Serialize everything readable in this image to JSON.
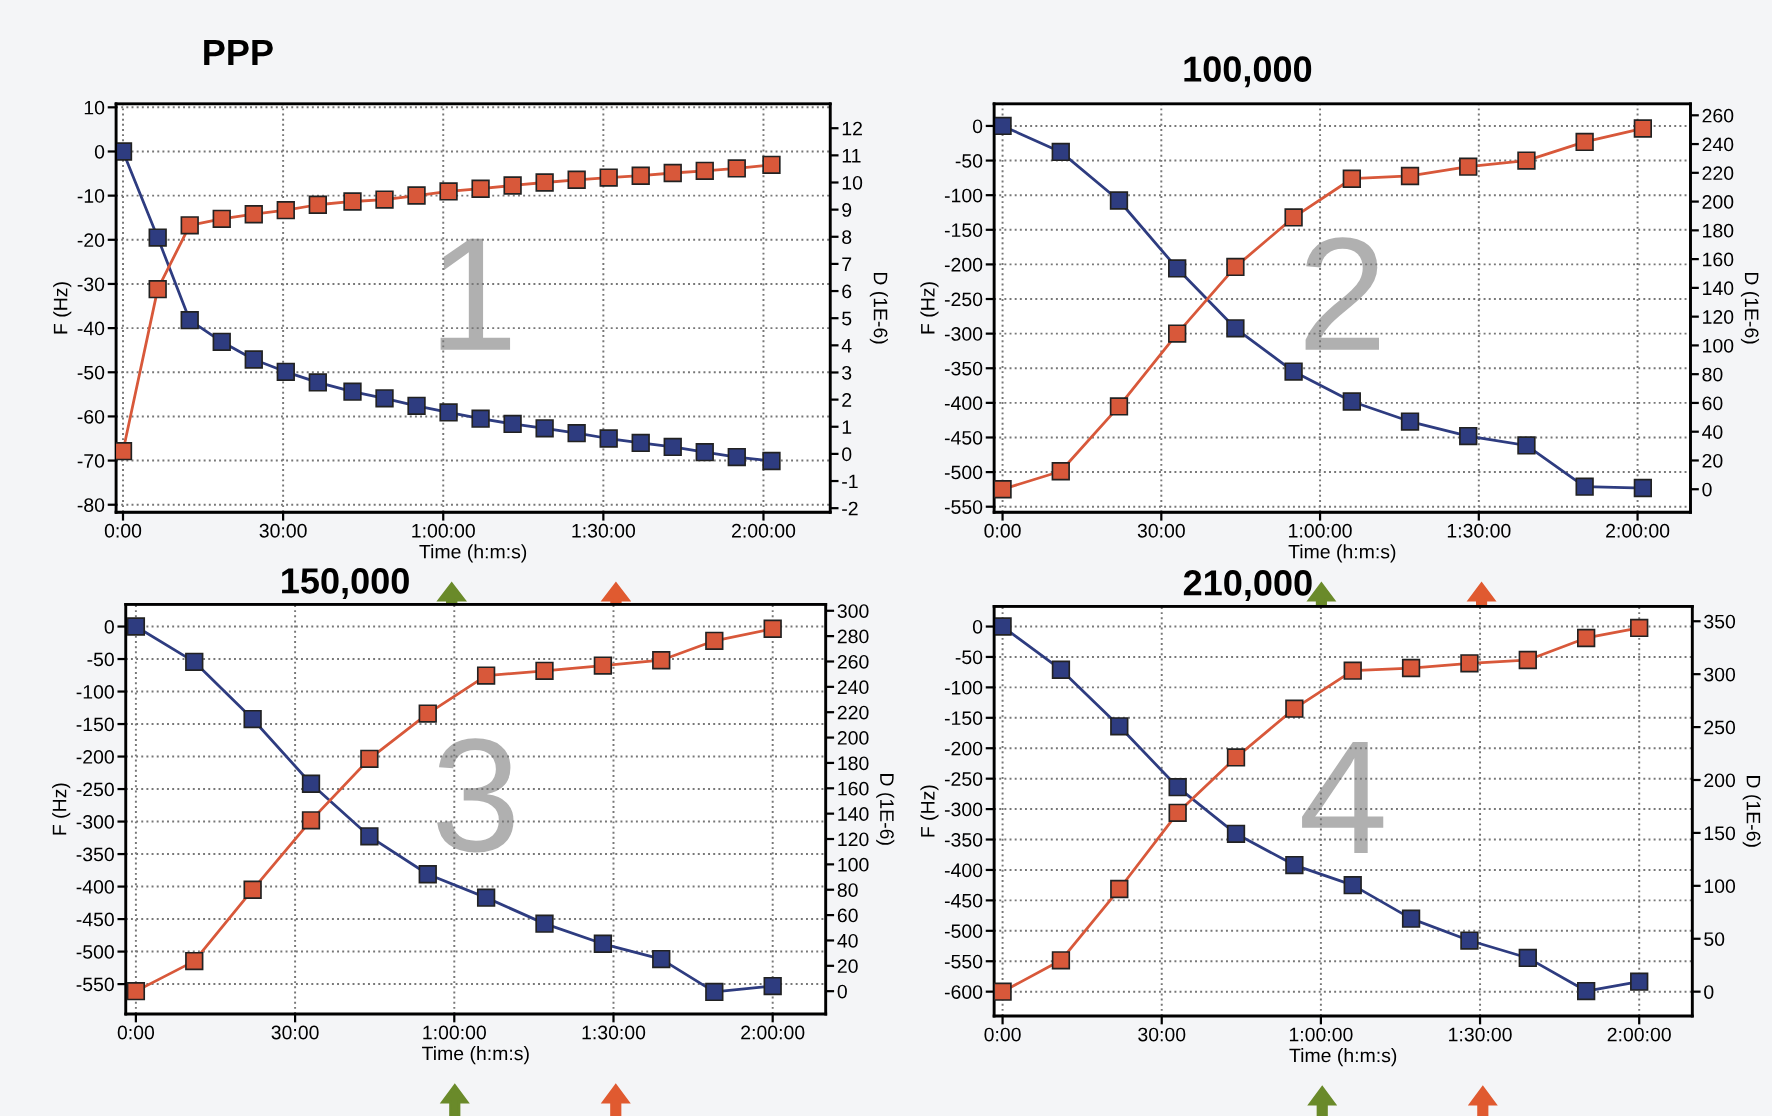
{
  "chart_data": [
    {
      "type": "line",
      "title": "PPP",
      "xlabel": "Time (h:m:s)",
      "ylabel": "F (Hz)",
      "y2label": "D (1E-6)",
      "annotations": [
        "1"
      ],
      "marker": "square",
      "grid": true,
      "x": [
        0,
        6.5,
        12.5,
        18.5,
        24.5,
        30.5,
        36.5,
        43,
        49,
        55,
        61,
        67,
        73,
        79,
        85,
        91,
        97,
        103,
        109,
        115,
        121.5
      ],
      "xlim": [
        -1.3,
        132.5
      ],
      "xticks": [
        {
          "value": 0,
          "label": "0:00"
        },
        {
          "value": 30,
          "label": "30:00"
        },
        {
          "value": 60,
          "label": "1:00:00"
        },
        {
          "value": 90,
          "label": "1:30:00"
        },
        {
          "value": 120,
          "label": "2:00:00"
        }
      ],
      "ylim": [
        -81.7,
        10.8
      ],
      "yticks": [
        -80,
        -70,
        -60,
        -50,
        -40,
        -30,
        -20,
        -10,
        0,
        10
      ],
      "y2lim": [
        -2.15,
        12.9
      ],
      "y2ticks": [
        -2,
        -1,
        0,
        1,
        2,
        3,
        4,
        5,
        6,
        7,
        8,
        9,
        10,
        11,
        12
      ],
      "series": [
        {
          "color": "#2e3c80",
          "values": [
            0,
            -19.5,
            -38.2,
            -43.1,
            -47.1,
            -49.9,
            -52.3,
            -54.4,
            -55.9,
            -57.6,
            -59.1,
            -60.5,
            -61.7,
            -62.7,
            -63.8,
            -65,
            -66,
            -66.9,
            -68.1,
            -69.2,
            -70.1
          ]
        },
        {
          "color": "#d8583a",
          "axis": "y2",
          "values": [
            0.1,
            6.07,
            8.42,
            8.66,
            8.83,
            8.98,
            9.18,
            9.3,
            9.37,
            9.52,
            9.67,
            9.77,
            9.89,
            10.0,
            10.1,
            10.18,
            10.25,
            10.35,
            10.43,
            10.52,
            10.65
          ]
        }
      ]
    },
    {
      "type": "line",
      "title": "100,000",
      "xlabel": "Time (h:m:s)",
      "ylabel": "F (Hz)",
      "y2label": "D (1E-6)",
      "annotations": [
        "2"
      ],
      "marker": "square",
      "grid": true,
      "x": [
        0,
        11,
        22,
        33,
        44,
        55,
        66,
        77,
        88,
        99,
        110,
        121
      ],
      "xlim": [
        -1.6,
        130
      ],
      "xticks": [
        {
          "value": 0,
          "label": "0:00"
        },
        {
          "value": 30,
          "label": "30:00"
        },
        {
          "value": 60,
          "label": "1:00:00"
        },
        {
          "value": 90,
          "label": "1:30:00"
        },
        {
          "value": 120,
          "label": "2:00:00"
        }
      ],
      "ylim": [
        -558,
        32
      ],
      "yticks": [
        -550,
        -500,
        -450,
        -400,
        -350,
        -300,
        -250,
        -200,
        -150,
        -100,
        -50,
        0
      ],
      "y2lim": [
        -16,
        268
      ],
      "y2ticks": [
        0,
        20,
        40,
        60,
        80,
        100,
        120,
        140,
        160,
        180,
        200,
        220,
        240,
        260
      ],
      "series": [
        {
          "color": "#2e3c80",
          "values": [
            0,
            -37.5,
            -107.7,
            -205.8,
            -292.3,
            -354.8,
            -398,
            -427,
            -448,
            -461.5,
            -521,
            -523
          ]
        },
        {
          "color": "#d8583a",
          "axis": "y2",
          "values": [
            0,
            12.5,
            57.6,
            108.2,
            154.6,
            189,
            215.9,
            217.8,
            224.3,
            228.5,
            241.5,
            250.8
          ]
        }
      ]
    },
    {
      "type": "line",
      "title": "150,000",
      "xlabel": "Time (h:m:s)",
      "ylabel": "F (Hz)",
      "y2label": "D (1E-6)",
      "annotations": [
        "3"
      ],
      "marker": "square",
      "grid": true,
      "x": [
        0,
        11,
        22,
        33,
        44,
        55,
        66,
        77,
        88,
        99,
        109,
        120
      ],
      "xlim": [
        -1.9,
        130
      ],
      "xticks": [
        {
          "value": 0,
          "label": "0:00"
        },
        {
          "value": 30,
          "label": "30:00"
        },
        {
          "value": 60,
          "label": "1:00:00"
        },
        {
          "value": 90,
          "label": "1:30:00"
        },
        {
          "value": 120,
          "label": "2:00:00"
        }
      ],
      "ylim": [
        -596,
        34
      ],
      "yticks": [
        -550,
        -500,
        -450,
        -400,
        -350,
        -300,
        -250,
        -200,
        -150,
        -100,
        -50,
        0
      ],
      "y2lim": [
        -18,
        305
      ],
      "y2ticks": [
        0,
        20,
        40,
        60,
        80,
        100,
        120,
        140,
        160,
        180,
        200,
        220,
        240,
        260,
        280,
        300
      ],
      "series": [
        {
          "color": "#2e3c80",
          "values": [
            0,
            -54.3,
            -142.4,
            -241.8,
            -322.7,
            -381,
            -417,
            -457,
            -488,
            -511.5,
            -562,
            -553
          ]
        },
        {
          "color": "#d8583a",
          "axis": "y2",
          "values": [
            0,
            23.7,
            80,
            134.7,
            183.2,
            218.9,
            248.9,
            252.6,
            256.8,
            261,
            276.3,
            285.8
          ]
        }
      ]
    },
    {
      "type": "line",
      "title": "210,000",
      "xlabel": "Time (h:m:s)",
      "ylabel": "F (Hz)",
      "y2label": "D (1E-6)",
      "annotations": [
        "4"
      ],
      "marker": "square",
      "grid": true,
      "x": [
        0,
        11,
        22,
        33,
        44,
        55,
        66,
        77,
        88,
        99,
        110,
        120
      ],
      "xlim": [
        -1.6,
        130
      ],
      "xticks": [
        {
          "value": 0,
          "label": "0:00"
        },
        {
          "value": 30,
          "label": "30:00"
        },
        {
          "value": 60,
          "label": "1:00:00"
        },
        {
          "value": 90,
          "label": "1:30:00"
        },
        {
          "value": 120,
          "label": "2:00:00"
        }
      ],
      "ylim": [
        -640,
        33
      ],
      "yticks": [
        -600,
        -550,
        -500,
        -450,
        -400,
        -350,
        -300,
        -250,
        -200,
        -150,
        -100,
        -50,
        0
      ],
      "y2lim": [
        -23,
        364
      ],
      "y2ticks": [
        0,
        50,
        100,
        150,
        200,
        250,
        300,
        350
      ],
      "series": [
        {
          "color": "#2e3c80",
          "values": [
            0,
            -71,
            -164,
            -264,
            -340.6,
            -392,
            -425,
            -480,
            -516,
            -544.5,
            -599,
            -583.6
          ]
        },
        {
          "color": "#d8583a",
          "axis": "y2",
          "values": [
            0,
            29.6,
            97,
            169,
            221.3,
            267.4,
            303.3,
            305.8,
            310.2,
            313.4,
            334.2,
            343.7
          ]
        }
      ]
    }
  ]
}
